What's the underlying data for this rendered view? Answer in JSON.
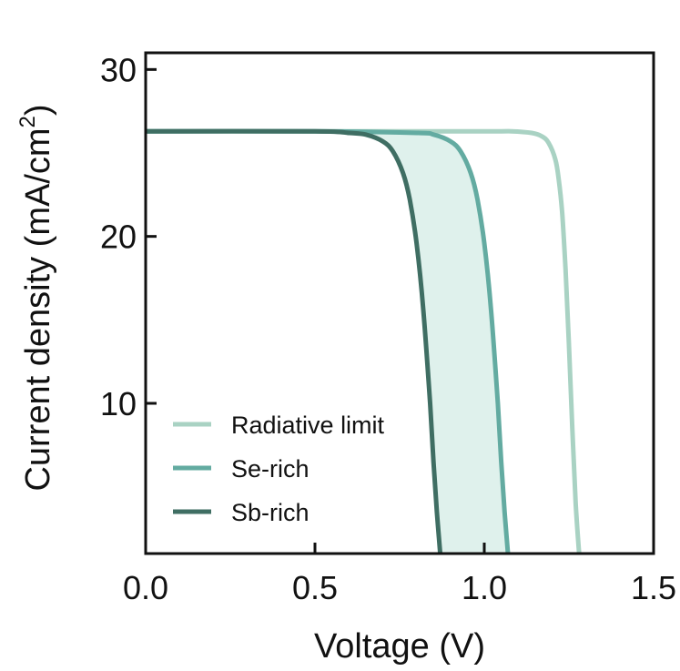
{
  "chart_data": {
    "type": "line",
    "xlabel": "Voltage (V)",
    "ylabel_main": "Current density (mA/cm",
    "ylabel_sup": "2",
    "ylabel_close": ")",
    "xlim": [
      0.0,
      1.5
    ],
    "ylim": [
      1,
      31
    ],
    "xticks": [
      {
        "value": 0.0,
        "label": "0.0"
      },
      {
        "value": 0.5,
        "label": "0.5"
      },
      {
        "value": 1.0,
        "label": "1.0"
      },
      {
        "value": 1.5,
        "label": "1.5"
      }
    ],
    "yticks": [
      {
        "value": 10,
        "label": "10"
      },
      {
        "value": 20,
        "label": "20"
      },
      {
        "value": 30,
        "label": "30"
      }
    ],
    "grid": false,
    "legend_position": "lower-left",
    "shaded_region": {
      "between": [
        "Sb-rich",
        "Se-rich"
      ],
      "color": "#dff1ec"
    },
    "series": [
      {
        "name": "Radiative limit",
        "color": "#a9d2c3",
        "x": [
          0.0,
          0.5,
          1.0,
          1.08,
          1.14,
          1.17,
          1.19,
          1.21,
          1.22,
          1.23,
          1.24,
          1.25,
          1.26,
          1.27,
          1.28
        ],
        "y": [
          26.3,
          26.3,
          26.3,
          26.3,
          26.2,
          26.0,
          25.6,
          24.6,
          23.4,
          21.4,
          18.0,
          13.5,
          8.5,
          4.0,
          1.0
        ]
      },
      {
        "name": "Se-rich",
        "color": "#63aba1",
        "x": [
          0.0,
          0.5,
          0.8,
          0.85,
          0.9,
          0.93,
          0.96,
          0.98,
          1.0,
          1.02,
          1.04,
          1.05,
          1.06,
          1.07
        ],
        "y": [
          26.3,
          26.3,
          26.2,
          26.1,
          25.7,
          25.1,
          23.8,
          22.2,
          19.6,
          15.6,
          10.0,
          6.5,
          3.5,
          1.0
        ]
      },
      {
        "name": "Sb-rich",
        "color": "#3f6e63",
        "x": [
          0.0,
          0.5,
          0.6,
          0.65,
          0.7,
          0.73,
          0.76,
          0.78,
          0.8,
          0.82,
          0.84,
          0.85,
          0.86,
          0.87
        ],
        "y": [
          26.3,
          26.3,
          26.2,
          26.1,
          25.7,
          25.1,
          23.8,
          22.2,
          19.6,
          15.6,
          10.0,
          6.5,
          3.5,
          1.0
        ]
      }
    ]
  }
}
